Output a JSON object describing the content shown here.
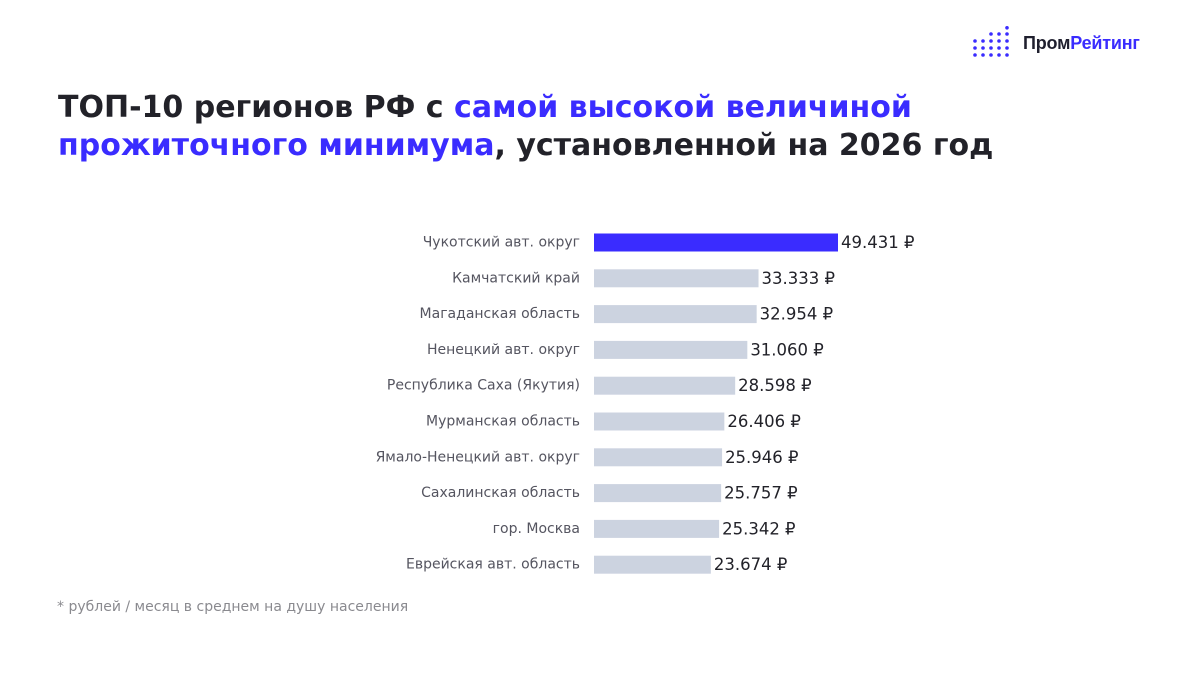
{
  "brand": {
    "name_part1": "Пром",
    "name_part2": "Рейтинг"
  },
  "title": {
    "part1": "ТОП-10 регионов РФ с ",
    "highlight": "самой высокой величиной прожиточного минимума",
    "part2": ", установленной на 2026 год"
  },
  "footnote": "* рублей / месяц в среднем на душу населения",
  "colors": {
    "accent": "#3a2cff",
    "bar_default": "#ccd3e0",
    "text_dark": "#222229",
    "label_gray": "#555560"
  },
  "chart_data": {
    "type": "bar",
    "orientation": "horizontal",
    "categories": [
      "Чукотский авт. округ",
      "Камчатский край",
      "Магаданская область",
      "Ненецкий авт. округ",
      "Республика Саха (Якутия)",
      "Мурманская область",
      "Ямало-Ненецкий авт. округ",
      "Сахалинская область",
      "гор. Москва",
      "Еврейская авт. область"
    ],
    "values": [
      49431,
      33333,
      32954,
      31060,
      28598,
      26406,
      25946,
      25757,
      25342,
      23674
    ],
    "value_labels": [
      "49.431 ₽",
      "33.333 ₽",
      "32.954 ₽",
      "31.060 ₽",
      "28.598 ₽",
      "26.406 ₽",
      "25.946 ₽",
      "25.757 ₽",
      "25.342 ₽",
      "23.674 ₽"
    ],
    "highlight_index": 0,
    "xlim": [
      0,
      49431
    ],
    "grid": false,
    "legend": "none"
  }
}
